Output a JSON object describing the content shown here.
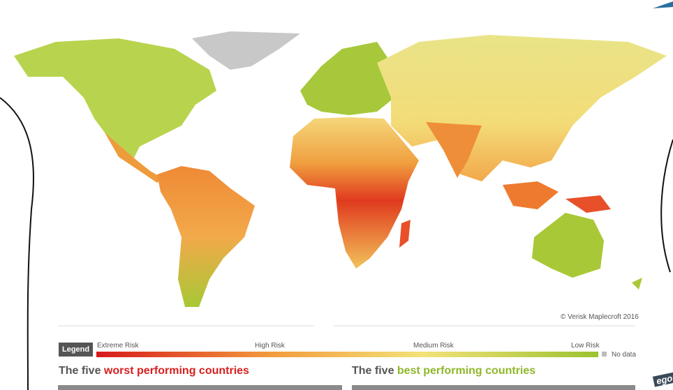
{
  "map": {
    "credit": "© Verisk Maplecroft 2016"
  },
  "legend": {
    "title": "Legend",
    "labels": [
      "Extreme Risk",
      "High Risk",
      "Medium Risk",
      "Low Risk"
    ],
    "no_data": "No data"
  },
  "sections": [
    {
      "prefix": "The five ",
      "highlight": "worst performing countries"
    },
    {
      "prefix": "The five ",
      "highlight": "best performing countries"
    }
  ],
  "edge_text": "egor"
}
